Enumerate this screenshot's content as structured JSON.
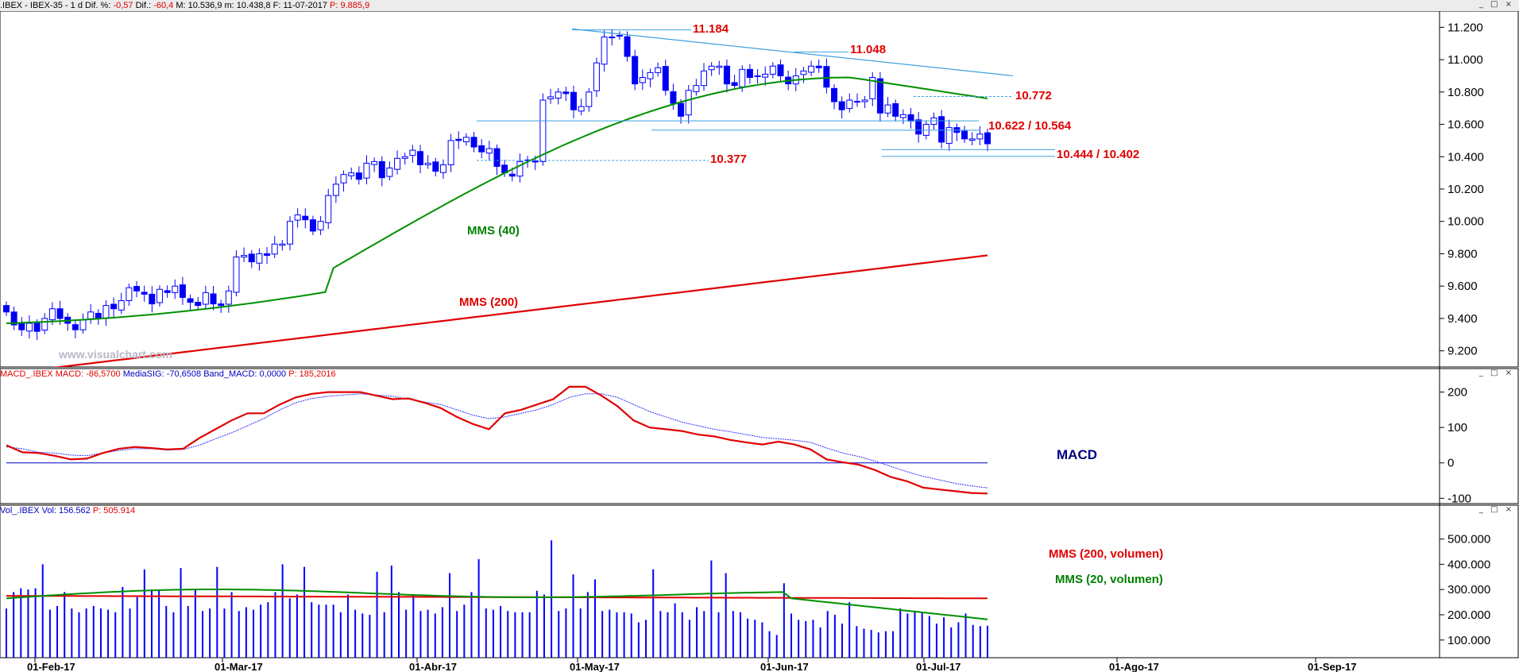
{
  "header": {
    "ticker": ".IBEX - IBEX-35 - 1 d Dif. %:",
    "dif_pct": "-0,57",
    "dif_label": "Dif.:",
    "dif": "-60,4",
    "max_label": "M: 10.536,9",
    "min_label": "m: 10.438,8",
    "date_label": "F: 11-07-2017",
    "p_label": "P: 9.885,9"
  },
  "macd_header": {
    "name": "MACD_.IBEX",
    "macd": "MACD: -86,5700",
    "signal": "MediaSIG: -70,6508",
    "band": "Band_MACD: 0,0000",
    "p": "P: 185,2016"
  },
  "vol_header": {
    "name": "Vol_.IBEX",
    "vol": "Vol: 156.562",
    "p": "P: 505.914"
  },
  "panel_buttons": "_ □ ×",
  "watermark": "www.visualchart.com",
  "colors": {
    "bull_candle": "#0000ff",
    "bear_candle": "#0000ee",
    "mms40": "#009000",
    "mms200": "#e00000",
    "macd_line": "#e00000",
    "signal_line": "#3030ff",
    "trend_line": "#3fa0e0",
    "volume_bar": "#0000ff"
  },
  "annotations": {
    "mms40": "MMS (40)",
    "mms200": "MMS (200)",
    "macd": "MACD",
    "vol_mms200": "MMS (200, volumen)",
    "vol_mms20": "MMS (20, volumen)",
    "lvl_11184": "11.184",
    "lvl_11048": "11.048",
    "lvl_10772": "10.772",
    "lvl_10622": "10.622 / 10.564",
    "lvl_10444": "10.444 / 10.402",
    "lvl_10377": "10.377"
  },
  "chart_data": [
    {
      "type": "candlestick",
      "title": ".IBEX - IBEX-35 - 1 d",
      "x_tick_labels": [
        "01-Feb-17",
        "01-Mar-17",
        "01-Abr-17",
        "01-May-17",
        "01-Jun-17",
        "01-Jul-17",
        "01-Ago-17",
        "01-Sep-17"
      ],
      "y_tick_labels": [
        "11.200",
        "11.000",
        "10.800",
        "10.600",
        "10.400",
        "10.200",
        "10.000",
        "9.800",
        "9.600",
        "9.400",
        "9.200"
      ],
      "ylim": [
        9100,
        11300
      ],
      "series_closes": [
        9440,
        9360,
        9330,
        9370,
        9320,
        9400,
        9460,
        9400,
        9370,
        9330,
        9390,
        9440,
        9400,
        9480,
        9460,
        9510,
        9590,
        9570,
        9550,
        9490,
        9580,
        9560,
        9600,
        9530,
        9500,
        9480,
        9560,
        9490,
        9480,
        9570,
        9780,
        9790,
        9750,
        9800,
        9790,
        9860,
        9860,
        10000,
        10040,
        10010,
        9940,
        10000,
        10160,
        10230,
        10290,
        10300,
        10260,
        10360,
        10370,
        10270,
        10330,
        10390,
        10400,
        10440,
        10350,
        10360,
        10310,
        10350,
        10500,
        10500,
        10520,
        10460,
        10430,
        10450,
        10340,
        10300,
        10280,
        10370,
        10380,
        10370,
        10750,
        10770,
        10800,
        10790,
        10690,
        10710,
        10800,
        10980,
        11140,
        11140,
        11150,
        11020,
        10850,
        10890,
        10920,
        10950,
        10810,
        10730,
        10650,
        10810,
        10840,
        10930,
        10960,
        10960,
        10850,
        10840,
        10940,
        10890,
        10900,
        10910,
        10960,
        10900,
        10850,
        10900,
        10930,
        10960,
        10950,
        10830,
        10740,
        10690,
        10750,
        10740,
        10750,
        10890,
        10670,
        10720,
        10650,
        10660,
        10620,
        10540,
        10600,
        10640,
        10490,
        10580,
        10550,
        10510,
        10510,
        10540,
        10480
      ],
      "last": {
        "open": 10536.9,
        "high": 10536.9,
        "low": 10438.8,
        "close": 10476.5
      },
      "overlays": [
        {
          "name": "MMS (40)",
          "start": 9370,
          "end": 10760
        },
        {
          "name": "MMS (200)",
          "start": 9060,
          "end": 9790
        }
      ],
      "levels": [
        11184,
        11048,
        10772,
        10622,
        10564,
        10444,
        10402,
        10377
      ]
    },
    {
      "type": "line",
      "title": "MACD_.IBEX",
      "y_tick_labels": [
        "200",
        "100",
        "0",
        "-100"
      ],
      "ylim": [
        -115,
        235
      ],
      "series": [
        {
          "name": "MACD",
          "values": [
            50,
            30,
            28,
            20,
            10,
            12,
            28,
            40,
            45,
            42,
            38,
            40,
            70,
            95,
            120,
            140,
            140,
            165,
            185,
            195,
            200,
            200,
            200,
            190,
            180,
            182,
            170,
            155,
            130,
            110,
            95,
            140,
            150,
            165,
            180,
            215,
            215,
            190,
            160,
            120,
            100,
            95,
            90,
            80,
            75,
            65,
            58,
            52,
            60,
            52,
            38,
            10,
            2,
            -5,
            -20,
            -40,
            -52,
            -70,
            -75,
            -80,
            -85,
            -86.57
          ]
        },
        {
          "name": "MediaSIG",
          "values": [
            45,
            40,
            30,
            28,
            22,
            20,
            28,
            35,
            40,
            40,
            36,
            38,
            50,
            68,
            85,
            105,
            125,
            150,
            170,
            182,
            188,
            192,
            195,
            192,
            188,
            180,
            172,
            165,
            150,
            135,
            125,
            130,
            140,
            150,
            165,
            185,
            195,
            195,
            185,
            165,
            145,
            130,
            115,
            105,
            95,
            88,
            80,
            72,
            68,
            64,
            58,
            42,
            28,
            18,
            5,
            -10,
            -25,
            -38,
            -48,
            -58,
            -65,
            -70.65
          ]
        }
      ],
      "band": 0
    },
    {
      "type": "bar",
      "title": "Vol_.IBEX",
      "y_tick_labels": [
        "500.000",
        "400.000",
        "300.000",
        "200.000",
        "100.000"
      ],
      "ylim": [
        30000,
        590000
      ],
      "values": [
        225000,
        290000,
        305000,
        300000,
        305000,
        400000,
        220000,
        235000,
        290000,
        225000,
        210000,
        225000,
        235000,
        225000,
        220000,
        210000,
        310000,
        225000,
        270000,
        380000,
        300000,
        300000,
        235000,
        210000,
        385000,
        235000,
        300000,
        215000,
        225000,
        390000,
        225000,
        290000,
        215000,
        230000,
        220000,
        240000,
        250000,
        290000,
        400000,
        265000,
        280000,
        390000,
        250000,
        240000,
        240000,
        240000,
        210000,
        280000,
        220000,
        205000,
        200000,
        370000,
        210000,
        395000,
        290000,
        220000,
        280000,
        215000,
        220000,
        205000,
        230000,
        365000,
        215000,
        240000,
        290000,
        420000,
        225000,
        220000,
        235000,
        215000,
        210000,
        210000,
        210000,
        295000,
        280000,
        495000,
        215000,
        225000,
        360000,
        225000,
        290000,
        340000,
        215000,
        220000,
        210000,
        210000,
        205000,
        170000,
        180000,
        380000,
        215000,
        210000,
        245000,
        210000,
        180000,
        230000,
        215000,
        415000,
        210000,
        365000,
        215000,
        210000,
        185000,
        180000,
        170000,
        135000,
        120000,
        325000,
        205000,
        180000,
        175000,
        180000,
        150000,
        215000,
        200000,
        165000,
        250000,
        155000,
        145000,
        140000,
        130000,
        135000,
        135000,
        225000,
        205000,
        215000,
        210000,
        195000,
        165000,
        190000,
        150000,
        170000,
        205000,
        160000,
        155000,
        156562
      ],
      "series": [
        {
          "name": "MMS (200, volumen)",
          "start": 275000,
          "end": 265000
        },
        {
          "name": "MMS (20, volumen)",
          "start": 230000,
          "end": 182000
        }
      ]
    }
  ]
}
